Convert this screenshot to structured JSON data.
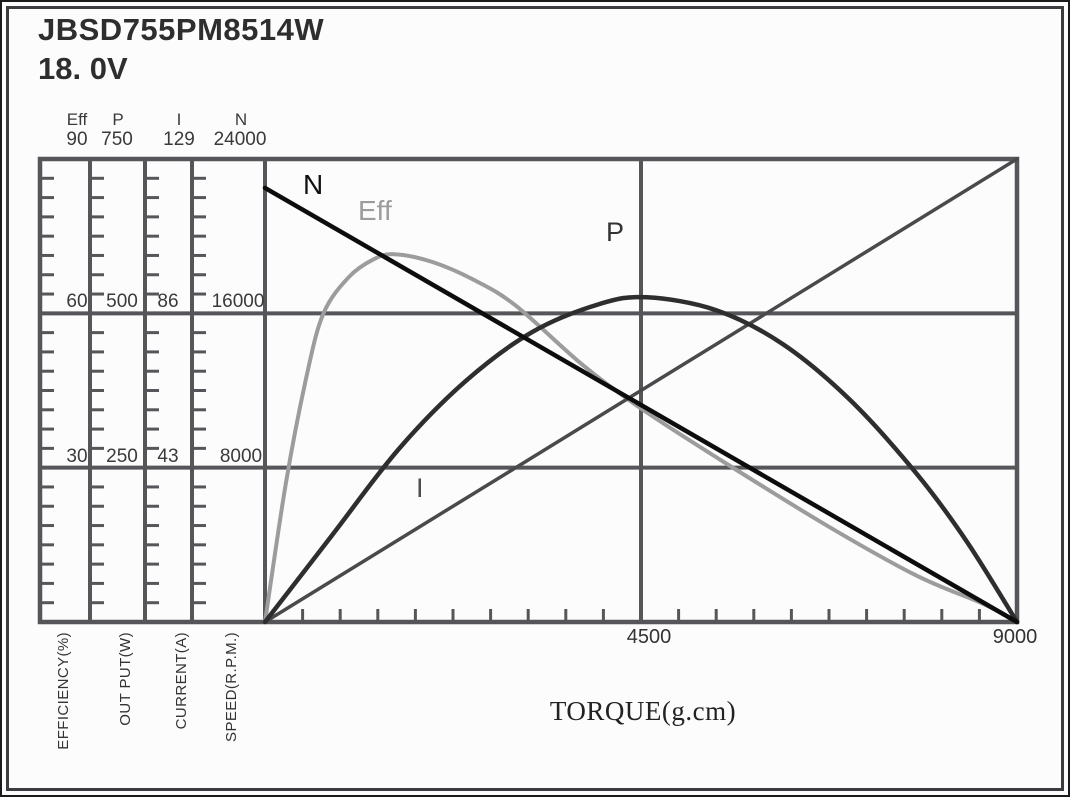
{
  "title": {
    "model": "JBSD755PM8514W",
    "voltage": "18. 0V"
  },
  "colors": {
    "grid": "#56565a",
    "frame": "#3c3c40",
    "curve_n": "#0d0d0d",
    "curve_eff": "#9c9c9c",
    "curve_p": "#2e2e2e",
    "curve_i": "#4a4a4d"
  },
  "axes": {
    "columns": [
      {
        "name": "Eff",
        "max": "90",
        "mid": "60",
        "low": "30",
        "unit": "EFFICIENCY(%)"
      },
      {
        "name": "P",
        "max": "750",
        "mid": "500",
        "low": "250",
        "unit": "OUT PUT(W)"
      },
      {
        "name": "I",
        "max": "129",
        "mid": "86",
        "low": "43",
        "unit": "CURRENT(A)"
      },
      {
        "name": "N",
        "max": "24000",
        "mid": "16000",
        "low": "8000",
        "unit": "SPEED(R.P.M.)"
      }
    ],
    "x_axis": {
      "title": "TORQUE(g.cm)",
      "tick_labels": [
        "4500",
        "9000"
      ]
    }
  },
  "chart_data": {
    "type": "line",
    "title": "JBSD755PM8514W 18.0V motor performance curves",
    "xlabel": "TORQUE(g.cm)",
    "xlim": [
      0,
      9000
    ],
    "x_gridlines": [
      4500
    ],
    "x_minor_tick_step": 450,
    "grid": "on (major grid at 1/3 and 2/3 of each axis range, vertical line at 4500)",
    "legend_position": "inline curve labels",
    "y_axes": [
      {
        "name": "Eff",
        "label": "EFFICIENCY(%)",
        "range": [
          0,
          90
        ],
        "ticks": [
          30,
          60,
          90
        ]
      },
      {
        "name": "P",
        "label": "OUT PUT(W)",
        "range": [
          0,
          750
        ],
        "ticks": [
          250,
          500,
          750
        ]
      },
      {
        "name": "I",
        "label": "CURRENT(A)",
        "range": [
          0,
          129
        ],
        "ticks": [
          43,
          86,
          129
        ]
      },
      {
        "name": "N",
        "label": "SPEED(R.P.M.)",
        "range": [
          0,
          24000
        ],
        "ticks": [
          8000,
          16000,
          24000
        ]
      }
    ],
    "series": [
      {
        "name": "N",
        "axis": "N",
        "color": "#0d0d0d",
        "width": 4.5,
        "smooth": false,
        "points": [
          [
            0,
            22500
          ],
          [
            9000,
            0
          ]
        ]
      },
      {
        "name": "Eff",
        "axis": "Eff",
        "color": "#9c9c9c",
        "width": 4,
        "smooth": true,
        "points": [
          [
            0,
            0
          ],
          [
            250,
            27
          ],
          [
            500,
            48
          ],
          [
            700,
            60
          ],
          [
            1000,
            67
          ],
          [
            1300,
            70.5
          ],
          [
            1550,
            71.5
          ],
          [
            2000,
            70
          ],
          [
            2500,
            66.5
          ],
          [
            3000,
            61.5
          ],
          [
            3800,
            50
          ],
          [
            4500,
            41.5
          ],
          [
            5500,
            31
          ],
          [
            6750,
            18.5
          ],
          [
            7800,
            9
          ],
          [
            8600,
            3.5
          ],
          [
            9000,
            0
          ]
        ]
      },
      {
        "name": "P",
        "axis": "P",
        "color": "#2e2e2e",
        "width": 4.5,
        "smooth": true,
        "points": [
          [
            0,
            0
          ],
          [
            800,
            140
          ],
          [
            1600,
            280
          ],
          [
            2400,
            390
          ],
          [
            3200,
            470
          ],
          [
            4000,
            515
          ],
          [
            4570,
            526
          ],
          [
            5400,
            505
          ],
          [
            6200,
            450
          ],
          [
            7000,
            360
          ],
          [
            7800,
            240
          ],
          [
            8400,
            130
          ],
          [
            9000,
            0
          ]
        ]
      },
      {
        "name": "I",
        "axis": "I",
        "color": "#4a4a4d",
        "width": 3.5,
        "smooth": false,
        "points": [
          [
            0,
            0
          ],
          [
            9000,
            129
          ]
        ]
      }
    ]
  }
}
